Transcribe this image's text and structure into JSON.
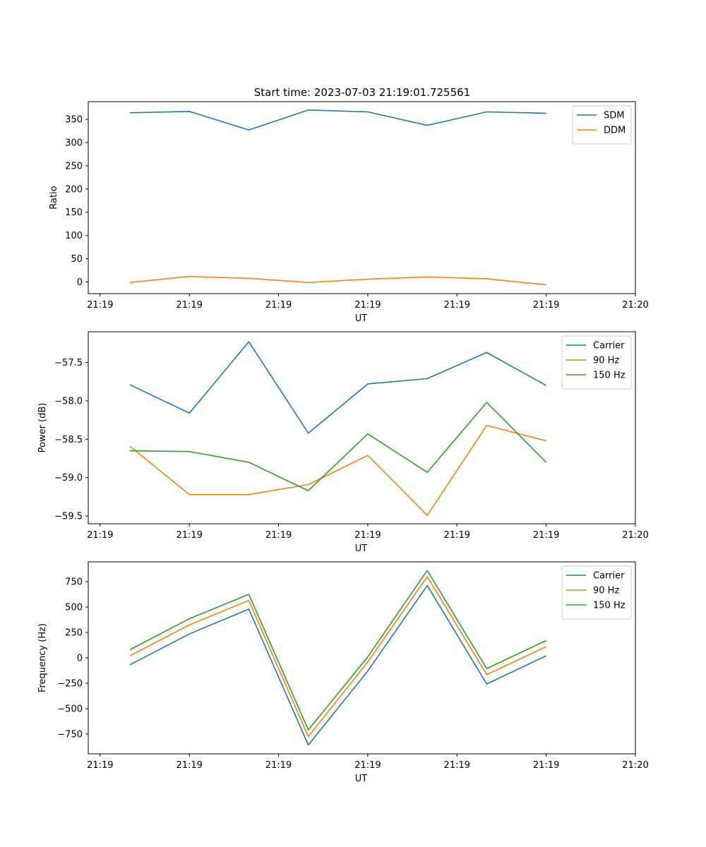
{
  "figure": {
    "title": "Start time: 2023-07-03 21:19:01.725561"
  },
  "chart_data": [
    {
      "type": "line",
      "ylabel": "Ratio",
      "xlabel": "UT",
      "xlim": [
        -0.2,
        9.0
      ],
      "ylim": [
        -25,
        388
      ],
      "x": [
        0.5,
        1.5,
        2.5,
        3.5,
        4.5,
        5.5,
        6.5,
        7.5
      ],
      "xticks": [
        0,
        1.5,
        3,
        4.5,
        6,
        7.5,
        9
      ],
      "xtick_labels": [
        "21:19",
        "21:19",
        "21:19",
        "21:19",
        "21:19",
        "21:19",
        "21:20"
      ],
      "yticks": [
        0,
        50,
        100,
        150,
        200,
        250,
        300,
        350
      ],
      "ytick_labels": [
        "0",
        "50",
        "100",
        "150",
        "200",
        "250",
        "300",
        "350"
      ],
      "legend_position": "top-right",
      "series": [
        {
          "name": "SDM",
          "color": "#1f77b4",
          "values": [
            364,
            367,
            327,
            370,
            366,
            337,
            366,
            363
          ]
        },
        {
          "name": "DDM",
          "color": "#ff7f0e",
          "values": [
            -1,
            12,
            8,
            -1,
            6,
            11,
            7,
            -6
          ]
        }
      ]
    },
    {
      "type": "line",
      "ylabel": "Power (dB)",
      "xlabel": "UT",
      "xlim": [
        -0.2,
        9.0
      ],
      "ylim": [
        -59.6,
        -57.1
      ],
      "x": [
        0.5,
        1.5,
        2.5,
        3.5,
        4.5,
        5.5,
        6.5,
        7.5
      ],
      "xticks": [
        0,
        1.5,
        3,
        4.5,
        6,
        7.5,
        9
      ],
      "xtick_labels": [
        "21:19",
        "21:19",
        "21:19",
        "21:19",
        "21:19",
        "21:19",
        "21:20"
      ],
      "yticks": [
        -59.5,
        -59.0,
        -58.5,
        -58.0,
        -57.5
      ],
      "ytick_labels": [
        "−59.5",
        "−59.0",
        "−58.5",
        "−58.0",
        "−57.5"
      ],
      "legend_position": "top-right",
      "series": [
        {
          "name": "Carrier",
          "color": "#1f77b4",
          "values": [
            -57.79,
            -58.16,
            -57.23,
            -58.42,
            -57.78,
            -57.71,
            -57.37,
            -57.8
          ]
        },
        {
          "name": "90 Hz",
          "color": "#ff7f0e",
          "values": [
            -58.59,
            -59.22,
            -59.22,
            -59.09,
            -58.71,
            -59.49,
            -58.32,
            -58.52
          ]
        },
        {
          "name": "150 Hz",
          "color": "#2ca02c",
          "values": [
            -58.65,
            -58.66,
            -58.8,
            -59.17,
            -58.43,
            -58.93,
            -58.02,
            -58.8
          ]
        }
      ]
    },
    {
      "type": "line",
      "ylabel": "Frequency (Hz)",
      "xlabel": "UT",
      "xlim": [
        -0.2,
        9.0
      ],
      "ylim": [
        -945,
        945
      ],
      "x": [
        0.5,
        1.5,
        2.5,
        3.5,
        4.5,
        5.5,
        6.5,
        7.5
      ],
      "xticks": [
        0,
        1.5,
        3,
        4.5,
        6,
        7.5,
        9
      ],
      "xtick_labels": [
        "21:19",
        "21:19",
        "21:19",
        "21:19",
        "21:19",
        "21:19",
        "21:20"
      ],
      "yticks": [
        -750,
        -500,
        -250,
        0,
        250,
        500,
        750
      ],
      "ytick_labels": [
        "−750",
        "−500",
        "−250",
        "0",
        "250",
        "500",
        "750"
      ],
      "legend_position": "top-right",
      "series": [
        {
          "name": "Carrier",
          "color": "#1f77b4",
          "values": [
            -68,
            235,
            480,
            -858,
            -130,
            712,
            -257,
            20
          ]
        },
        {
          "name": "90 Hz",
          "color": "#ff7f0e",
          "values": [
            20,
            325,
            565,
            -775,
            -40,
            800,
            -165,
            110
          ]
        },
        {
          "name": "150 Hz",
          "color": "#2ca02c",
          "values": [
            80,
            385,
            625,
            -710,
            10,
            860,
            -105,
            170
          ]
        }
      ]
    }
  ]
}
